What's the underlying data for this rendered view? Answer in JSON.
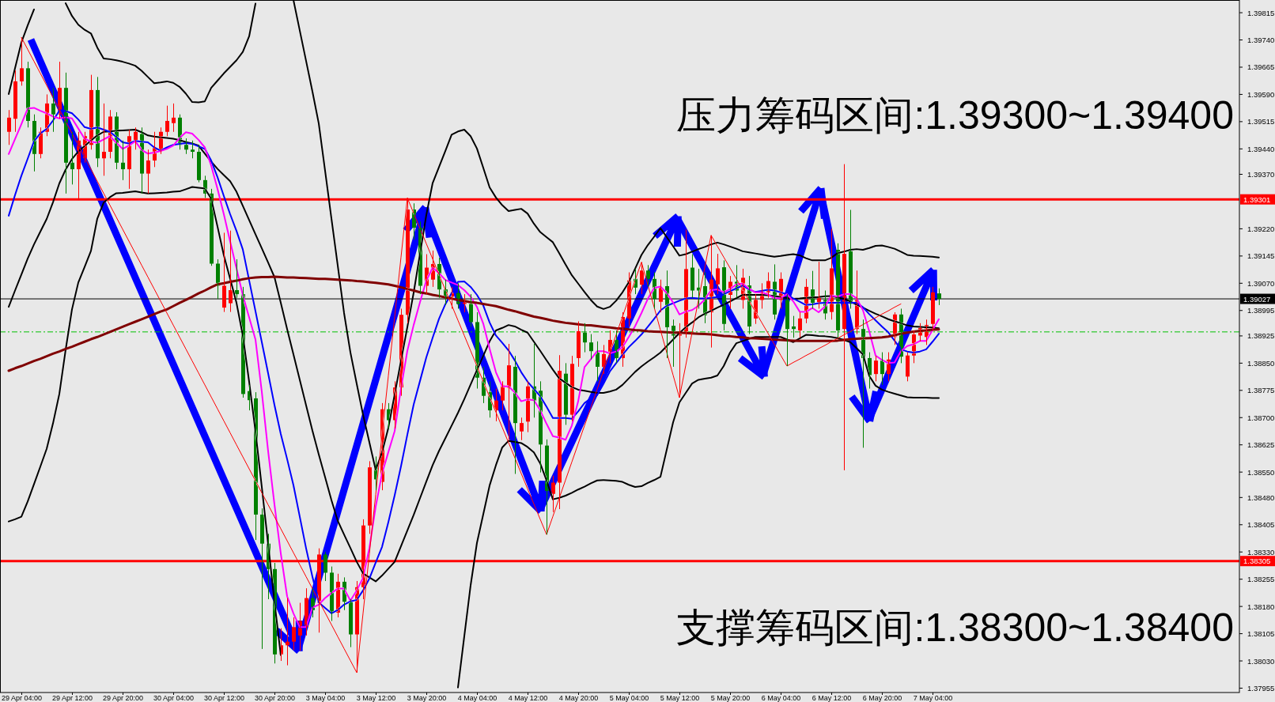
{
  "chart_data": {
    "type": "candlestick",
    "categories": [
      null,
      null,
      "29 Apr 04:00",
      null,
      null,
      null,
      null,
      null,
      null,
      null,
      "29 Apr 12:00",
      null,
      null,
      null,
      null,
      null,
      null,
      null,
      "29 Apr 20:00",
      null,
      null,
      null,
      null,
      null,
      null,
      null,
      "30 Apr 04:00",
      null,
      null,
      null,
      null,
      null,
      null,
      null,
      "30 Apr 12:00",
      null,
      null,
      null,
      null,
      null,
      null,
      null,
      "30 Apr 20:00",
      null,
      null,
      null,
      null,
      null,
      null,
      null,
      "3 May 04:00",
      null,
      null,
      null,
      null,
      null,
      null,
      null,
      "3 May 12:00",
      null,
      null,
      null,
      null,
      null,
      null,
      null,
      "3 May 20:00",
      null,
      null,
      null,
      null,
      null,
      null,
      null,
      "4 May 04:00",
      null,
      null,
      null,
      null,
      null,
      null,
      null,
      "4 May 12:00",
      null,
      null,
      null,
      null,
      null,
      null,
      null,
      "4 May 20:00",
      null,
      null,
      null,
      null,
      null,
      null,
      null,
      "5 May 04:00",
      null,
      null,
      null,
      null,
      null,
      null,
      null,
      "5 May 12:00",
      null,
      null,
      null,
      null,
      null,
      null,
      null,
      "5 May 20:00",
      null,
      null,
      null,
      null,
      null,
      null,
      null,
      "6 May 04:00",
      null,
      null,
      null,
      null,
      null,
      null,
      null,
      "6 May 12:00",
      null,
      null,
      null,
      null,
      null,
      null,
      null,
      "6 May 20:00",
      null,
      null,
      null,
      null,
      null,
      null,
      null,
      "7 May 04:00",
      null
    ],
    "ohlc": [
      [
        1.39487,
        1.39547,
        1.39451,
        1.39526
      ],
      [
        1.39523,
        1.39656,
        1.39487,
        1.39626
      ],
      [
        1.39626,
        1.39747,
        1.39614,
        1.39662
      ],
      [
        1.39662,
        1.3968,
        1.39499,
        1.39517
      ],
      [
        1.39517,
        1.39535,
        1.39378,
        1.39426
      ],
      [
        1.39426,
        1.39499,
        1.39414,
        1.39487
      ],
      [
        1.39487,
        1.3959,
        1.39475,
        1.39565
      ],
      [
        1.39565,
        1.39608,
        1.39487,
        1.39535
      ],
      [
        1.39535,
        1.3968,
        1.39523,
        1.39608
      ],
      [
        1.39608,
        1.3965,
        1.39317,
        1.39402
      ],
      [
        1.39402,
        1.39487,
        1.39342,
        1.39384
      ],
      [
        1.39384,
        1.39487,
        1.39299,
        1.39463
      ],
      [
        1.39414,
        1.39487,
        1.39402,
        1.39475
      ],
      [
        1.39451,
        1.39644,
        1.39438,
        1.39602
      ],
      [
        1.39602,
        1.39638,
        1.3939,
        1.39414
      ],
      [
        1.39414,
        1.39565,
        1.39366,
        1.39432
      ],
      [
        1.39432,
        1.39547,
        1.39414,
        1.39529
      ],
      [
        1.39529,
        1.39541,
        1.39384,
        1.39402
      ],
      [
        1.39402,
        1.39463,
        1.39354,
        1.39384
      ],
      [
        1.39384,
        1.39493,
        1.3933,
        1.39475
      ],
      [
        1.39457,
        1.39499,
        1.39438,
        1.39487
      ],
      [
        1.39481,
        1.39499,
        1.39317,
        1.39372
      ],
      [
        1.39372,
        1.39438,
        1.39317,
        1.39408
      ],
      [
        1.39408,
        1.39487,
        1.3939,
        1.39445
      ],
      [
        1.39438,
        1.39499,
        1.39426,
        1.39487
      ],
      [
        1.39487,
        1.39559,
        1.39475,
        1.39517
      ],
      [
        1.39511,
        1.39565,
        1.39487,
        1.39526
      ],
      [
        1.39526,
        1.39535,
        1.39438,
        1.39451
      ],
      [
        1.39451,
        1.39469,
        1.39426,
        1.39438
      ],
      [
        1.39438,
        1.39463,
        1.39414,
        1.39432
      ],
      [
        1.39432,
        1.39451,
        1.39348,
        1.39354
      ],
      [
        1.39354,
        1.39366,
        1.39305,
        1.39317
      ],
      [
        1.39317,
        1.3933,
        1.39118,
        1.39124
      ],
      [
        1.39124,
        1.39136,
        1.39027,
        1.39063
      ],
      [
        1.39003,
        1.39209,
        1.38991,
        1.39063
      ],
      [
        1.39015,
        1.39215,
        1.38991,
        1.39051
      ],
      [
        1.39051,
        1.39136,
        1.3903,
        1.3904
      ],
      [
        1.3904,
        1.3906,
        1.38755,
        1.38765
      ],
      [
        1.38773,
        1.3879,
        1.3872,
        1.38748
      ],
      [
        1.38753,
        1.3877,
        1.38363,
        1.38433
      ],
      [
        1.38433,
        1.3845,
        1.38063,
        1.38353
      ],
      [
        1.38353,
        1.3838,
        1.382,
        1.38283
      ],
      [
        1.38283,
        1.383,
        1.38023,
        1.38048
      ],
      [
        1.38048,
        1.3812,
        1.3803,
        1.38073
      ],
      [
        1.38073,
        1.38203,
        1.38018,
        1.38083
      ],
      [
        1.38083,
        1.3815,
        1.3806,
        1.38123
      ],
      [
        1.381,
        1.3819,
        1.38058,
        1.3814
      ],
      [
        1.38123,
        1.3823,
        1.381,
        1.38203
      ],
      [
        1.38203,
        1.3823,
        1.3815,
        1.3817
      ],
      [
        1.3819,
        1.3834,
        1.38108,
        1.38323
      ],
      [
        1.38323,
        1.3833,
        1.3825,
        1.38273
      ],
      [
        1.38273,
        1.3829,
        1.3814,
        1.38163
      ],
      [
        1.38163,
        1.3827,
        1.3815,
        1.38248
      ],
      [
        1.38248,
        1.3826,
        1.3817,
        1.38193
      ],
      [
        1.38193,
        1.382,
        1.38068,
        1.38103
      ],
      [
        1.38103,
        1.3825,
        1.37998,
        1.38233
      ],
      [
        1.38233,
        1.3842,
        1.382,
        1.38403
      ],
      [
        1.38403,
        1.3858,
        1.3838,
        1.38563
      ],
      [
        1.38563,
        1.38593,
        1.385,
        1.3853
      ],
      [
        1.38523,
        1.3874,
        1.385,
        1.38723
      ],
      [
        1.38723,
        1.3874,
        1.3867,
        1.38693
      ],
      [
        1.38693,
        1.388,
        1.3867,
        1.38783
      ],
      [
        1.38783,
        1.39,
        1.3876,
        1.38983
      ],
      [
        1.38983,
        1.39305,
        1.3896,
        1.39273
      ],
      [
        1.39273,
        1.3929,
        1.3919,
        1.39223
      ],
      [
        1.39223,
        1.3924,
        1.3904,
        1.39063
      ],
      [
        1.39063,
        1.3915,
        1.3904,
        1.39113
      ],
      [
        1.3908,
        1.3916,
        1.3906,
        1.39123
      ],
      [
        1.39123,
        1.3914,
        1.3903,
        1.39053
      ],
      [
        1.39053,
        1.3908,
        1.3901,
        1.39033
      ],
      [
        1.39033,
        1.3906,
        1.39,
        1.39043
      ],
      [
        1.39043,
        1.3907,
        1.39,
        1.39013
      ],
      [
        1.39013,
        1.3904,
        1.3899,
        1.39023
      ],
      [
        1.39013,
        1.3904,
        1.3895,
        1.38963
      ],
      [
        1.38963,
        1.3899,
        1.3878,
        1.3881
      ],
      [
        1.3881,
        1.3884,
        1.3874,
        1.3876
      ],
      [
        1.3877,
        1.388,
        1.387,
        1.3872
      ],
      [
        1.3872,
        1.3878,
        1.3869,
        1.38747
      ],
      [
        1.38747,
        1.388,
        1.3872,
        1.3879
      ],
      [
        1.38782,
        1.38903,
        1.38638,
        1.38844
      ],
      [
        1.3884,
        1.3887,
        1.38545,
        1.38685
      ],
      [
        1.38662,
        1.387,
        1.38638,
        1.38685
      ],
      [
        1.38689,
        1.388,
        1.3866,
        1.38786
      ],
      [
        1.38786,
        1.38903,
        1.387,
        1.38747
      ],
      [
        1.38774,
        1.388,
        1.38549,
        1.38626
      ],
      [
        1.38623,
        1.3864,
        1.38378,
        1.38498
      ],
      [
        1.3849,
        1.3854,
        1.3844,
        1.38521
      ],
      [
        1.38521,
        1.38872,
        1.38448,
        1.38829
      ],
      [
        1.38821,
        1.3885,
        1.3868,
        1.38708
      ],
      [
        1.38708,
        1.3887,
        1.3869,
        1.38848
      ],
      [
        1.38864,
        1.38965,
        1.3884,
        1.38938
      ],
      [
        1.38934,
        1.3896,
        1.3888,
        1.38907
      ],
      [
        1.38907,
        1.3893,
        1.3886,
        1.38883
      ],
      [
        1.38879,
        1.3891,
        1.388,
        1.3884
      ],
      [
        1.3884,
        1.389,
        1.3882,
        1.38875
      ],
      [
        1.38875,
        1.3894,
        1.3885,
        1.38914
      ],
      [
        1.38914,
        1.3894,
        1.3885,
        1.38864
      ],
      [
        1.38864,
        1.3899,
        1.3884,
        1.38977
      ],
      [
        1.38973,
        1.391,
        1.3895,
        1.39078
      ],
      [
        1.39082,
        1.3911,
        1.3904,
        1.39058
      ],
      [
        1.39066,
        1.39128,
        1.3904,
        1.39105
      ],
      [
        1.39105,
        1.3912,
        1.3906,
        1.39082
      ],
      [
        1.39082,
        1.391,
        1.39,
        1.39027
      ],
      [
        1.39019,
        1.3908,
        1.3899,
        1.39058
      ],
      [
        1.39062,
        1.39105,
        1.38864,
        1.38949
      ],
      [
        1.38953,
        1.3897,
        1.3884,
        1.38926
      ],
      [
        1.38926,
        1.3896,
        1.38755,
        1.38934
      ],
      [
        1.38934,
        1.39218,
        1.3892,
        1.39109
      ],
      [
        1.39113,
        1.3915,
        1.3903,
        1.3905
      ],
      [
        1.39058,
        1.3911,
        1.39,
        1.3905
      ],
      [
        1.39062,
        1.391,
        1.3896,
        1.38982
      ],
      [
        1.3899,
        1.39202,
        1.38893,
        1.3908
      ],
      [
        1.39067,
        1.39151,
        1.3904,
        1.39111
      ],
      [
        1.39114,
        1.39133,
        1.3894,
        1.38958
      ],
      [
        1.39038,
        1.3909,
        1.39,
        1.39074
      ],
      [
        1.39074,
        1.3912,
        1.3903,
        1.3905
      ],
      [
        1.39024,
        1.3911,
        1.39,
        1.39085
      ],
      [
        1.39064,
        1.3909,
        1.3893,
        1.38951
      ],
      [
        1.38973,
        1.3904,
        1.38958,
        1.39024
      ],
      [
        1.39024,
        1.3907,
        1.39,
        1.3905
      ],
      [
        1.39045,
        1.391,
        1.3903,
        1.39076
      ],
      [
        1.39074,
        1.39122,
        1.3897,
        1.38984
      ],
      [
        1.39024,
        1.391,
        1.39,
        1.39082
      ],
      [
        1.39024,
        1.3904,
        1.38842,
        1.38944
      ],
      [
        1.38951,
        1.3898,
        1.3892,
        1.38944
      ],
      [
        1.3894,
        1.3899,
        1.3892,
        1.38973
      ],
      [
        1.38973,
        1.39082,
        1.3896,
        1.3906
      ],
      [
        1.39053,
        1.39104,
        1.39,
        1.39016
      ],
      [
        1.39016,
        1.39129,
        1.39,
        1.3903
      ],
      [
        1.39024,
        1.3905,
        1.3897,
        1.38987
      ],
      [
        1.38991,
        1.3922,
        1.3897,
        1.39111
      ],
      [
        1.39162,
        1.3918,
        1.3892,
        1.3894
      ],
      [
        1.38944,
        1.39398,
        1.38555,
        1.39151
      ],
      [
        1.39158,
        1.39272,
        1.39,
        1.39013
      ],
      [
        1.38944,
        1.39105,
        1.3893,
        1.39024
      ],
      [
        1.38944,
        1.3897,
        1.38617,
        1.38864
      ],
      [
        1.38864,
        1.3888,
        1.3878,
        1.38817
      ],
      [
        1.3882,
        1.3887,
        1.388,
        1.38857
      ],
      [
        1.38857,
        1.3888,
        1.3879,
        1.3882
      ],
      [
        1.3882,
        1.3888,
        1.388,
        1.3886
      ],
      [
        1.38922,
        1.3899,
        1.389,
        1.38984
      ],
      [
        1.38984,
        1.39,
        1.3885,
        1.38868
      ],
      [
        1.38813,
        1.3888,
        1.388,
        1.38871
      ],
      [
        1.38871,
        1.3894,
        1.3885,
        1.38929
      ],
      [
        1.38926,
        1.3896,
        1.3891,
        1.38951
      ],
      [
        1.38922,
        1.3897,
        1.389,
        1.38955
      ],
      [
        1.38958,
        1.3906,
        1.3894,
        1.39045
      ],
      [
        1.39042,
        1.39056,
        1.3901,
        1.39027
      ]
    ],
    "colors": [
      "#ff0000",
      "#ff0000",
      "#ff0000",
      "#008000",
      "#008000",
      "#ff0000",
      "#ff0000",
      "#008000",
      "#ff0000",
      "#008000",
      "#008000",
      "#ff0000",
      "#ff0000",
      "#ff0000",
      "#008000",
      "#ff0000",
      "#ff0000",
      "#008000",
      "#008000",
      "#ff0000",
      "#ff0000",
      "#008000",
      "#ff0000",
      "#ff0000",
      "#ff0000",
      "#ff0000",
      "#ff0000",
      "#008000",
      "#008000",
      "#008000",
      "#008000",
      "#008000",
      "#008000",
      "#008000",
      "#ff0000",
      "#ff0000",
      "#008000",
      "#008000",
      "#008000",
      "#008000",
      "#008000",
      "#008000",
      "#008000",
      "#ff0000",
      "#ff0000",
      "#ff0000",
      "#ff0000",
      "#ff0000",
      "#008000",
      "#ff0000",
      "#008000",
      "#008000",
      "#ff0000",
      "#008000",
      "#008000",
      "#ff0000",
      "#ff0000",
      "#ff0000",
      "#008000",
      "#ff0000",
      "#008000",
      "#ff0000",
      "#ff0000",
      "#ff0000",
      "#008000",
      "#008000",
      "#ff0000",
      "#ff0000",
      "#008000",
      "#008000",
      "#ff0000",
      "#008000",
      "#ff0000",
      "#008000",
      "#008000",
      "#008000",
      "#008000",
      "#ff0000",
      "#ff0000",
      "#ff0000",
      "#008000",
      "#ff0000",
      "#ff0000",
      "#008000",
      "#008000",
      "#008000",
      "#ff0000",
      "#ff0000",
      "#008000",
      "#ff0000",
      "#ff0000",
      "#008000",
      "#008000",
      "#008000",
      "#ff0000",
      "#ff0000",
      "#008000",
      "#ff0000",
      "#ff0000",
      "#008000",
      "#ff0000",
      "#008000",
      "#008000",
      "#ff0000",
      "#008000",
      "#008000",
      "#ff0000",
      "#ff0000",
      "#008000",
      "#008000",
      "#008000",
      "#ff0000",
      "#ff0000",
      "#008000",
      "#ff0000",
      "#008000",
      "#ff0000",
      "#008000",
      "#ff0000",
      "#ff0000",
      "#ff0000",
      "#008000",
      "#ff0000",
      "#008000",
      "#008000",
      "#ff0000",
      "#ff0000",
      "#008000",
      "#ff0000",
      "#008000",
      "#ff0000",
      "#008000",
      "#ff0000",
      "#008000",
      "#ff0000",
      "#008000",
      "#008000",
      "#ff0000",
      "#008000",
      "#ff0000",
      "#ff0000",
      "#008000",
      "#ff0000",
      "#ff0000",
      "#ff0000",
      "#ff0000",
      "#ff0000",
      "#008000"
    ],
    "ylim": [
      1.37943,
      1.3985
    ],
    "yticks": [
      1.39815,
      {
        "value": 1.3974,
        "label": "1.39740"
      },
      1.39665,
      {
        "value": 1.3959,
        "label": "1.39590"
      },
      1.39515,
      {
        "value": 1.3944,
        "label": "1.39440"
      },
      {
        "value": 1.3937,
        "label": "1.39370"
      },
      {
        "value": 1.3922,
        "label": "1.39220"
      },
      1.39145,
      {
        "value": 1.3907,
        "label": "1.39070"
      },
      1.38995,
      1.38925,
      {
        "value": 1.3885,
        "label": "1.38850"
      },
      1.38775,
      {
        "value": 1.387,
        "label": "1.38700"
      },
      1.38625,
      {
        "value": 1.3855,
        "label": "1.38550"
      },
      {
        "value": 1.3848,
        "label": "1.38480"
      },
      1.38405,
      {
        "value": 1.3833,
        "label": "1.38330"
      },
      1.38255,
      {
        "value": 1.3818,
        "label": "1.38180"
      },
      1.38105,
      {
        "value": 1.3803,
        "label": "1.38030"
      },
      1.37955
    ],
    "series": [
      {
        "type": "line",
        "color": "#000000",
        "values": [
          1.39591,
          1.39662,
          1.39733,
          1.3978,
          1.39824,
          null,
          null,
          null,
          null,
          1.39841,
          1.39806,
          1.39782,
          1.39768,
          1.39758,
          1.39719,
          1.39689,
          1.39687,
          1.39684,
          1.3968,
          1.39675,
          1.39669,
          1.39655,
          1.39638,
          1.39621,
          1.39623,
          1.39626,
          1.39622,
          1.39611,
          1.39592,
          1.39569,
          1.39568,
          1.39571,
          1.39608,
          1.39628,
          1.39648,
          1.39666,
          1.39684,
          1.39707,
          1.3975,
          1.3984,
          null,
          null,
          null,
          null,
          null,
          1.3985,
          1.39766,
          1.39682,
          1.39598,
          1.3951,
          1.3938,
          1.39249,
          1.39119,
          1.38988,
          1.3888,
          1.38793,
          1.38708,
          1.38632,
          1.38556,
          1.38604,
          1.38672,
          1.38764,
          1.38857,
          1.38949,
          1.39044,
          1.39151,
          1.39258,
          1.39346,
          1.3939,
          1.39434,
          1.39479,
          1.39488,
          1.39493,
          1.39475,
          1.39441,
          1.39388,
          1.39334,
          1.39306,
          1.39285,
          1.39269,
          1.39272,
          1.39275,
          1.39262,
          1.39234,
          1.39211,
          1.39197,
          1.39183,
          1.39153,
          1.39122,
          1.39092,
          1.39069,
          1.39046,
          1.39024,
          1.39006,
          1.38999,
          1.39005,
          1.39022,
          1.39045,
          1.39073,
          1.3911,
          1.39148,
          1.39175,
          1.39198,
          1.39222,
          1.39197,
          1.39172,
          1.39146,
          1.3915,
          1.39157,
          1.39164,
          1.3917,
          1.39177,
          1.39182,
          1.39177,
          1.39171,
          1.39165,
          1.39158,
          1.39155,
          1.39152,
          1.39149,
          1.39146,
          1.39143,
          1.39145,
          1.39148,
          1.3915,
          1.39147,
          1.39139,
          1.39133,
          1.39133,
          1.39133,
          1.3914,
          1.39153,
          1.39157,
          1.39162,
          1.39164,
          1.39162,
          1.39167,
          1.39173,
          1.39174,
          1.3917,
          1.39165,
          1.39157,
          1.39148,
          1.39146,
          1.39145,
          1.39144,
          1.39143,
          1.39141
        ]
      },
      {
        "type": "line",
        "color": "#000000",
        "values": [
          1.39005,
          1.3905,
          1.39094,
          1.39138,
          1.39177,
          1.39212,
          1.39247,
          1.39293,
          1.39345,
          1.39383,
          1.39412,
          1.39433,
          1.39448,
          1.39463,
          1.39477,
          1.39487,
          1.39488,
          1.3949,
          1.39491,
          1.39492,
          1.39493,
          1.39486,
          1.39477,
          1.39474,
          1.39472,
          1.3947,
          1.39468,
          1.39464,
          1.39459,
          1.39455,
          1.39449,
          1.39427,
          1.39405,
          1.39385,
          1.39368,
          1.39351,
          1.39322,
          1.39283,
          1.39244,
          1.39205,
          1.39166,
          1.39127,
          1.39087,
          1.39016,
          1.38944,
          1.38874,
          1.38804,
          1.38734,
          1.38664,
          1.38599,
          1.38536,
          1.38473,
          1.38416,
          1.38378,
          1.38341,
          1.38303,
          1.38271,
          1.3826,
          1.38249,
          1.38265,
          1.38284,
          1.38303,
          1.38346,
          1.38389,
          1.38432,
          1.38478,
          1.38524,
          1.38569,
          1.38608,
          1.38643,
          1.38678,
          1.38713,
          1.38751,
          1.38791,
          1.38831,
          1.3887,
          1.3891,
          1.3894,
          1.38947,
          1.38955,
          1.38951,
          1.38942,
          1.38934,
          1.38909,
          1.38884,
          1.38858,
          1.38832,
          1.38808,
          1.38796,
          1.38784,
          1.38777,
          1.38774,
          1.38771,
          1.38768,
          1.38768,
          1.38772,
          1.38777,
          1.3879,
          1.38808,
          1.38826,
          1.38841,
          1.38854,
          1.38866,
          1.38879,
          1.38897,
          1.38915,
          1.38933,
          1.38949,
          1.38962,
          1.38976,
          1.38986,
          1.38994,
          1.39003,
          1.39011,
          1.3902,
          1.39029,
          1.39038,
          1.39038,
          1.39038,
          1.39038,
          1.39037,
          1.39035,
          1.39032,
          1.3903,
          1.39027,
          1.39028,
          1.3903,
          1.39031,
          1.39032,
          1.39034,
          1.39035,
          1.39031,
          1.39027,
          1.3902,
          1.39011,
          1.39003,
          1.38994,
          1.38986,
          1.38979,
          1.38971,
          1.38965,
          1.3896,
          1.38954,
          1.38951,
          1.3895,
          1.38949,
          1.38948,
          1.38946
        ]
      },
      {
        "type": "line",
        "color": "#000000",
        "values": [
          1.38414,
          1.3842,
          1.38427,
          1.38469,
          1.38517,
          1.38565,
          1.38614,
          1.38684,
          1.38765,
          1.38887,
          1.38998,
          1.39072,
          1.39115,
          1.39159,
          1.39248,
          1.39292,
          1.39307,
          1.39318,
          1.39319,
          1.39321,
          1.39323,
          1.3932,
          1.39317,
          1.39318,
          1.39319,
          1.3932,
          1.39322,
          1.39323,
          1.39329,
          1.39335,
          1.39333,
          1.39331,
          1.39303,
          1.39226,
          1.39147,
          1.39082,
          1.39016,
          1.38926,
          1.38799,
          1.38662,
          1.38509,
          1.38352,
          1.38193,
          1.38046,
          null,
          null,
          null,
          null,
          null,
          null,
          null,
          null,
          null,
          null,
          null,
          null,
          null,
          null,
          null,
          null,
          null,
          null,
          null,
          null,
          null,
          null,
          null,
          null,
          null,
          null,
          null,
          1.37957,
          1.38098,
          1.38238,
          1.38355,
          1.38434,
          1.38513,
          1.38569,
          1.38618,
          1.38636,
          1.38633,
          1.3863,
          1.38619,
          1.38604,
          1.38574,
          1.38527,
          1.38475,
          1.38479,
          1.38485,
          1.38493,
          1.38502,
          1.3851,
          1.38519,
          1.38527,
          1.38528,
          1.38527,
          1.38526,
          1.38523,
          1.38515,
          1.38509,
          1.38511,
          1.3852,
          1.38528,
          1.38537,
          1.38612,
          1.38687,
          1.38742,
          1.38768,
          1.38794,
          1.38804,
          1.38807,
          1.3881,
          1.38816,
          1.38842,
          1.38879,
          1.38905,
          1.38911,
          1.38917,
          1.38922,
          1.38922,
          1.38922,
          1.38922,
          1.38922,
          1.38915,
          1.38908,
          1.38918,
          1.38928,
          1.38927,
          1.38925,
          1.38924,
          1.38922,
          1.38919,
          1.38914,
          1.38908,
          1.38891,
          1.38874,
          1.38815,
          1.38788,
          1.38777,
          1.38771,
          1.38766,
          1.38761,
          1.38756,
          1.38755,
          1.38755,
          1.38755,
          1.38754,
          1.38754
        ]
      },
      {
        "type": "line",
        "color": "#0000ff",
        "values": [
          1.39256,
          1.39313,
          1.39366,
          1.39413,
          1.39461,
          1.39483,
          1.39495,
          1.39518,
          1.39545,
          1.39544,
          1.39538,
          1.39521,
          1.395,
          1.39495,
          1.39499,
          1.39493,
          1.39487,
          1.39473,
          1.39458,
          1.39455,
          1.39462,
          1.3946,
          1.39458,
          1.39444,
          1.39435,
          1.39444,
          1.39451,
          1.39454,
          1.39456,
          1.39454,
          1.39447,
          1.3944,
          1.39408,
          1.39362,
          1.3931,
          1.3926,
          1.39214,
          1.39163,
          1.39078,
          1.38993,
          1.38908,
          1.38822,
          1.38735,
          1.38655,
          1.38586,
          1.38514,
          1.38427,
          1.3834,
          1.38262,
          1.38191,
          1.38176,
          1.38161,
          1.3817,
          1.38185,
          1.38194,
          1.38198,
          1.38224,
          1.38257,
          1.38301,
          1.38344,
          1.38412,
          1.38486,
          1.38566,
          1.38653,
          1.38736,
          1.38801,
          1.38866,
          1.3892,
          1.38972,
          1.39012,
          1.39043,
          1.39074,
          1.39075,
          1.3906,
          1.39038,
          1.39009,
          1.38962,
          1.38926,
          1.38906,
          1.38885,
          1.38857,
          1.38825,
          1.38799,
          1.38779,
          1.38759,
          1.3873,
          1.38699,
          1.38699,
          1.38699,
          1.38697,
          1.38717,
          1.3874,
          1.38753,
          1.38762,
          1.38793,
          1.38827,
          1.3885,
          1.38873,
          1.38894,
          1.38911,
          1.38929,
          1.3895,
          1.38972,
          1.38995,
          1.39008,
          1.39015,
          1.39022,
          1.39028,
          1.3903,
          1.39028,
          1.39028,
          1.3903,
          1.39032,
          1.3904,
          1.39048,
          1.39056,
          1.39064,
          1.39053,
          1.39046,
          1.39049,
          1.39052,
          1.3905,
          1.39045,
          1.39039,
          1.39028,
          1.39019,
          1.3901,
          1.39012,
          1.39015,
          1.39016,
          1.39016,
          1.39016,
          1.39016,
          1.39016,
          1.39016,
          1.39004,
          1.38985,
          1.38968,
          1.38951,
          1.38935,
          1.38912,
          1.38888,
          1.38882,
          1.38879,
          1.38882,
          1.38888,
          1.38909,
          1.38931
        ]
      },
      {
        "type": "line",
        "color": "#ff00ff",
        "values": [
          1.39426,
          1.39467,
          1.39508,
          1.39551,
          1.39553,
          1.39545,
          1.39538,
          1.39529,
          1.39524,
          1.39527,
          1.39524,
          1.39496,
          1.39468,
          1.3946,
          1.39457,
          1.39466,
          1.39475,
          1.39457,
          1.3944,
          1.39449,
          1.39461,
          1.39437,
          1.39427,
          1.3943,
          1.39434,
          1.3944,
          1.39449,
          1.3947,
          1.39486,
          1.39482,
          1.39465,
          1.39444,
          1.39394,
          1.3933,
          1.3926,
          1.39185,
          1.39111,
          1.39037,
          1.38976,
          1.38915,
          1.38771,
          1.38608,
          1.38461,
          1.38326,
          1.38208,
          1.38161,
          1.38123,
          1.38123,
          1.38177,
          1.38185,
          1.38203,
          1.38217,
          1.38229,
          1.38229,
          1.38196,
          1.38224,
          1.38259,
          1.38341,
          1.38455,
          1.38546,
          1.38605,
          1.38663,
          1.38781,
          1.38884,
          1.38955,
          1.39018,
          1.39077,
          1.39113,
          1.39098,
          1.39079,
          1.39072,
          1.39065,
          1.39051,
          1.39033,
          1.39005,
          1.38959,
          1.3889,
          1.38825,
          1.38786,
          1.38786,
          1.38769,
          1.38745,
          1.3875,
          1.38748,
          1.3872,
          1.38683,
          1.38649,
          1.38645,
          1.38639,
          1.38678,
          1.38745,
          1.38839,
          1.38861,
          1.38883,
          1.38883,
          1.38877,
          1.38882,
          1.38894,
          1.38922,
          1.38952,
          1.38988,
          1.39027,
          1.39057,
          1.39061,
          1.39043,
          1.39017,
          1.38984,
          1.38992,
          1.38996,
          1.39008,
          1.39025,
          1.39051,
          1.39053,
          1.39045,
          1.39054,
          1.39067,
          1.39069,
          1.39055,
          1.39045,
          1.39045,
          1.39039,
          1.39029,
          1.39029,
          1.3904,
          1.3902,
          1.38992,
          1.38991,
          1.39002,
          1.3899,
          1.39006,
          1.39036,
          1.39033,
          1.3904,
          1.3904,
          1.39029,
          1.38996,
          1.38938,
          1.38871,
          1.38859,
          1.3885,
          1.38852,
          1.38883,
          1.38897,
          1.38902,
          1.38911,
          1.38911,
          1.38941,
          1.38971
        ]
      },
      {
        "type": "line",
        "color": "#800000",
        "values": [
          1.38829,
          1.38836,
          1.38842,
          1.38849,
          1.38856,
          1.38862,
          1.38869,
          1.38876,
          1.38882,
          1.38889,
          1.38895,
          1.38902,
          1.38909,
          1.38916,
          1.38922,
          1.38929,
          1.38936,
          1.38943,
          1.3895,
          1.38957,
          1.38964,
          1.38971,
          1.38978,
          1.38985,
          1.38992,
          1.38998,
          1.39007,
          1.39016,
          1.39024,
          1.39033,
          1.39042,
          1.3905,
          1.39059,
          1.39067,
          1.3907,
          1.39074,
          1.39077,
          1.39081,
          1.39084,
          1.39086,
          1.39087,
          1.39087,
          1.39088,
          1.39087,
          1.39086,
          1.39086,
          1.39085,
          1.39084,
          1.39083,
          1.39082,
          1.39082,
          1.39081,
          1.3908,
          1.39079,
          1.39078,
          1.39076,
          1.39075,
          1.39073,
          1.39071,
          1.39069,
          1.39067,
          1.39063,
          1.39059,
          1.39054,
          1.3905,
          1.39045,
          1.39042,
          1.39038,
          1.39035,
          1.39031,
          1.39028,
          1.39024,
          1.39021,
          1.39018,
          1.39016,
          1.39013,
          1.3901,
          1.39007,
          1.39002,
          1.38997,
          1.38993,
          1.38988,
          1.38983,
          1.38978,
          1.38975,
          1.38971,
          1.38967,
          1.38964,
          1.38961,
          1.38959,
          1.38957,
          1.38955,
          1.38954,
          1.38952,
          1.3895,
          1.38948,
          1.38946,
          1.38945,
          1.38943,
          1.38941,
          1.3894,
          1.38938,
          1.38937,
          1.38936,
          1.38935,
          1.38934,
          1.38934,
          1.38933,
          1.38932,
          1.38931,
          1.3893,
          1.38929,
          1.38927,
          1.38925,
          1.38924,
          1.38922,
          1.38921,
          1.38919,
          1.38918,
          1.38917,
          1.38916,
          1.38915,
          1.38914,
          1.38913,
          1.38912,
          1.38911,
          1.38911,
          1.38911,
          1.38911,
          1.38911,
          1.38911,
          1.38912,
          1.38914,
          1.38916,
          1.38917,
          1.38918,
          1.38919,
          1.3892,
          1.38921,
          1.38923,
          1.38927,
          1.38931,
          1.38934,
          1.38937,
          1.38939,
          1.3894,
          1.38942,
          1.38943
        ]
      },
      {
        "type": "line",
        "color": "#ff0000",
        "values": [
          null,
          null,
          1.39747,
          1.39714,
          1.39681,
          1.39648,
          1.39615,
          1.39582,
          1.39549,
          1.39516,
          1.39483,
          1.3945,
          1.39417,
          1.39384,
          1.39351,
          1.39318,
          1.39285,
          1.39252,
          1.39219,
          1.39186,
          1.39153,
          1.3912,
          1.39087,
          1.39054,
          1.39021,
          1.38988,
          1.38955,
          1.38922,
          1.38889,
          1.38856,
          1.38823,
          1.3879,
          1.38757,
          1.38724,
          1.38691,
          1.38658,
          1.38625,
          1.38592,
          1.38559,
          1.38526,
          1.38493,
          1.3846,
          1.38427,
          1.38394,
          1.38361,
          1.38328,
          1.38295,
          1.38262,
          1.38229,
          1.38196,
          1.38163,
          1.3813,
          1.38097,
          1.38064,
          1.38031,
          1.37998,
          1.38161,
          1.38325,
          1.38488,
          1.38652,
          1.38815,
          1.38978,
          1.39142,
          1.39305,
          1.39263,
          1.39221,
          1.39179,
          1.39137,
          1.39094,
          1.39052,
          1.3901,
          1.38968,
          1.38926,
          1.38884,
          1.38842,
          1.38799,
          1.38757,
          1.38715,
          1.38673,
          1.38631,
          1.38589,
          1.38546,
          1.38504,
          1.38462,
          1.3842,
          1.38378,
          1.38428,
          1.38478,
          1.38528,
          1.38578,
          1.38628,
          1.38678,
          1.38728,
          1.38778,
          1.38828,
          1.38878,
          1.38928,
          1.38978,
          1.39028,
          1.39078,
          1.39128,
          1.39066,
          1.39004,
          1.38941,
          1.38879,
          1.38817,
          1.38755,
          1.38844,
          1.38934,
          1.39023,
          1.39113,
          1.39202,
          1.39172,
          1.39142,
          1.39112,
          1.39082,
          1.39052,
          1.39022,
          1.38992,
          1.38962,
          1.38932,
          1.38902,
          1.38872,
          1.38842,
          1.38852,
          1.38861,
          1.38871,
          1.3888,
          1.3889,
          1.38899,
          1.38909,
          1.38918,
          1.38928,
          1.38937,
          1.38947,
          1.38956,
          1.38966,
          1.38975,
          1.38985,
          1.38994,
          1.39004,
          1.39013,
          null,
          null,
          null,
          null,
          null,
          null
        ]
      }
    ],
    "ref_lines": [
      {
        "axis": "y",
        "value": 1.39301,
        "label": "1.39301",
        "color": "#ff0000"
      },
      {
        "axis": "y",
        "value": 1.38305,
        "label": "1.38305",
        "color": "#ff0000"
      },
      {
        "axis": "y",
        "value": 1.39027,
        "label": "1.39027",
        "color": "#000000"
      },
      {
        "axis": "y",
        "value": 1.38936,
        "color": "#00c000",
        "line_style": "dashed"
      }
    ],
    "annotations": [
      "压力筹码区间:1.39300~1.39400",
      "支撑筹码区间:1.38300~1.38400"
    ]
  }
}
